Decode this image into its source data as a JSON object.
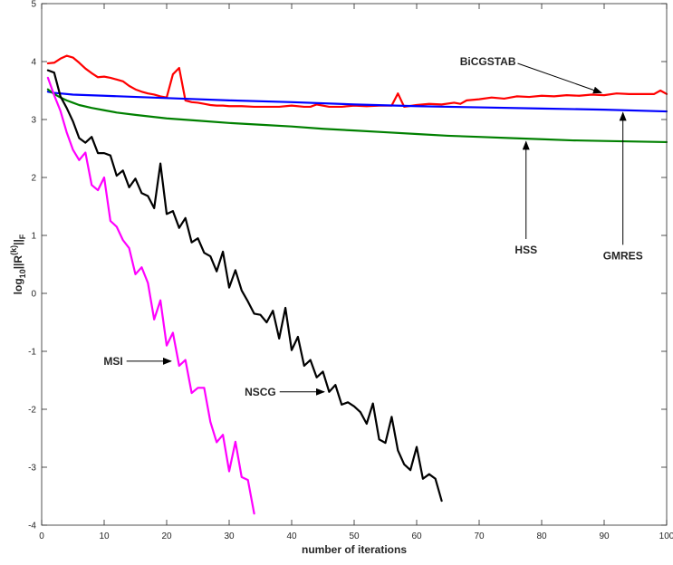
{
  "chart_data": {
    "type": "line",
    "title": "",
    "xlabel": "number of iterations",
    "ylabel": "log10||R(k)||F",
    "xlim": [
      0,
      100
    ],
    "ylim": [
      -4,
      5
    ],
    "xticks": [
      0,
      10,
      20,
      30,
      40,
      50,
      60,
      70,
      80,
      90,
      100
    ],
    "yticks": [
      -4,
      -3,
      -2,
      -1,
      0,
      1,
      2,
      3,
      4,
      5
    ],
    "grid": false,
    "series": [
      {
        "name": "BiCGSTAB",
        "color": "#ff0000",
        "x": [
          1,
          2,
          3,
          4,
          5,
          6,
          7,
          8,
          9,
          10,
          11,
          12,
          13,
          14,
          15,
          16,
          17,
          18,
          19,
          20,
          21,
          22,
          23,
          24,
          25,
          26,
          27,
          28,
          29,
          30,
          32,
          34,
          36,
          38,
          40,
          42,
          43,
          44,
          46,
          48,
          50,
          52,
          54,
          56,
          57,
          58,
          60,
          62,
          64,
          66,
          67,
          68,
          70,
          72,
          74,
          76,
          78,
          80,
          82,
          84,
          86,
          88,
          90,
          92,
          94,
          96,
          98,
          99,
          100
        ],
        "y": [
          3.97,
          3.98,
          4.05,
          4.1,
          4.07,
          3.98,
          3.88,
          3.8,
          3.73,
          3.74,
          3.72,
          3.69,
          3.66,
          3.58,
          3.52,
          3.48,
          3.45,
          3.43,
          3.4,
          3.38,
          3.78,
          3.89,
          3.33,
          3.3,
          3.29,
          3.27,
          3.25,
          3.24,
          3.24,
          3.23,
          3.23,
          3.22,
          3.22,
          3.22,
          3.24,
          3.22,
          3.22,
          3.26,
          3.22,
          3.22,
          3.24,
          3.23,
          3.24,
          3.24,
          3.45,
          3.22,
          3.25,
          3.27,
          3.26,
          3.29,
          3.27,
          3.33,
          3.35,
          3.38,
          3.36,
          3.4,
          3.39,
          3.41,
          3.4,
          3.42,
          3.41,
          3.43,
          3.42,
          3.45,
          3.44,
          3.44,
          3.44,
          3.5,
          3.44
        ]
      },
      {
        "name": "GMRES",
        "color": "#0000ff",
        "x": [
          1,
          2,
          3,
          5,
          10,
          20,
          30,
          40,
          50,
          60,
          70,
          80,
          90,
          100
        ],
        "y": [
          3.48,
          3.46,
          3.45,
          3.43,
          3.41,
          3.37,
          3.33,
          3.3,
          3.26,
          3.23,
          3.21,
          3.19,
          3.17,
          3.14
        ]
      },
      {
        "name": "HSS",
        "color": "#008000",
        "x": [
          1,
          2,
          3,
          4,
          5,
          6,
          8,
          10,
          12,
          15,
          20,
          25,
          30,
          35,
          40,
          45,
          50,
          55,
          60,
          65,
          70,
          75,
          80,
          85,
          90,
          95,
          100
        ],
        "y": [
          3.52,
          3.44,
          3.38,
          3.33,
          3.29,
          3.25,
          3.2,
          3.16,
          3.12,
          3.08,
          3.02,
          2.98,
          2.94,
          2.91,
          2.88,
          2.84,
          2.81,
          2.78,
          2.75,
          2.72,
          2.7,
          2.68,
          2.66,
          2.64,
          2.63,
          2.62,
          2.61
        ],
        "smooth": true
      },
      {
        "name": "NSCG",
        "color": "#000000",
        "x": [
          1,
          2,
          3,
          4,
          5,
          6,
          7,
          8,
          9,
          10,
          11,
          12,
          13,
          14,
          15,
          16,
          17,
          18,
          19,
          20,
          21,
          22,
          23,
          24,
          25,
          26,
          27,
          28,
          29,
          30,
          31,
          32,
          33,
          34,
          35,
          36,
          37,
          38,
          39,
          40,
          41,
          42,
          43,
          44,
          45,
          46,
          47,
          48,
          49,
          50,
          51,
          52,
          53,
          54,
          55,
          56,
          57,
          58,
          59,
          60,
          61,
          62,
          63,
          64
        ],
        "y": [
          3.85,
          3.81,
          3.4,
          3.2,
          2.97,
          2.68,
          2.6,
          2.7,
          2.42,
          2.42,
          2.38,
          2.03,
          2.12,
          1.83,
          1.98,
          1.73,
          1.68,
          1.47,
          2.24,
          1.37,
          1.42,
          1.13,
          1.3,
          0.88,
          0.95,
          0.7,
          0.64,
          0.38,
          0.72,
          0.1,
          0.4,
          0.05,
          -0.14,
          -0.35,
          -0.37,
          -0.5,
          -0.3,
          -0.78,
          -0.25,
          -0.98,
          -0.75,
          -1.25,
          -1.15,
          -1.45,
          -1.35,
          -1.7,
          -1.58,
          -1.92,
          -1.88,
          -1.95,
          -2.05,
          -2.25,
          -1.9,
          -2.52,
          -2.58,
          -2.13,
          -2.71,
          -2.95,
          -3.05,
          -2.65,
          -3.2,
          -3.12,
          -3.2,
          -3.58
        ]
      },
      {
        "name": "MSI",
        "color": "#ff00ff",
        "x": [
          1,
          2,
          3,
          4,
          5,
          6,
          7,
          8,
          9,
          10,
          11,
          12,
          13,
          14,
          15,
          16,
          17,
          18,
          19,
          20,
          21,
          22,
          23,
          24,
          25,
          26,
          27,
          28,
          29,
          30,
          31,
          32,
          33,
          34
        ],
        "y": [
          3.72,
          3.42,
          3.15,
          2.78,
          2.48,
          2.3,
          2.43,
          1.87,
          1.78,
          2.0,
          1.25,
          1.15,
          0.92,
          0.78,
          0.33,
          0.45,
          0.18,
          -0.45,
          -0.12,
          -0.9,
          -0.68,
          -1.25,
          -1.15,
          -1.72,
          -1.63,
          -1.63,
          -2.22,
          -2.57,
          -2.44,
          -3.07,
          -2.56,
          -3.17,
          -3.22,
          -3.8
        ]
      }
    ],
    "annotations": [
      {
        "text": "BiCGSTAB",
        "color": "#000000",
        "points_to": [
          90,
          3.43
        ],
        "text_at": [
          75,
          4.0
        ]
      },
      {
        "text": "GMRES",
        "color": "#000000",
        "points_to": [
          93,
          3.15
        ],
        "text_at": [
          93,
          0.65
        ]
      },
      {
        "text": "HSS",
        "color": "#000000",
        "points_to": [
          77.5,
          2.65
        ],
        "text_at": [
          77.5,
          0.75
        ]
      },
      {
        "text": "NSCG",
        "color": "#000000",
        "points_to": [
          45.5,
          -1.7
        ],
        "text_at": [
          37.5,
          -1.7
        ]
      },
      {
        "text": "MSI",
        "color": "#000000",
        "points_to": [
          21,
          -1.17
        ],
        "text_at": [
          13,
          -1.17
        ]
      }
    ]
  }
}
